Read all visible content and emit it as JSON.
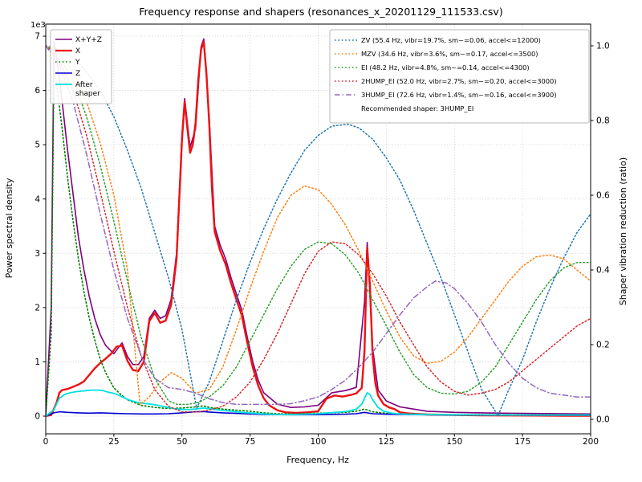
{
  "figure": {
    "title": "Frequency response and shapers (resonances_x_20201129_111533.csv)",
    "xlabel": "Frequency, Hz",
    "ylabel_left": "Power spectral density",
    "ylabel_right": "Shaper vibration reduction (ratio)",
    "offset_label": "1e3",
    "x_tick_labels": [
      "0",
      "25",
      "50",
      "75",
      "100",
      "125",
      "150",
      "175",
      "200"
    ],
    "y_tick_labels_left": [
      "0",
      "1",
      "2",
      "3",
      "4",
      "5",
      "6",
      "7"
    ],
    "y_tick_labels_right": [
      "0.0",
      "0.2",
      "0.4",
      "0.6",
      "0.8",
      "1.0"
    ],
    "grid_color": "#c3c3c3",
    "spine_color": "#000000"
  },
  "chart_data": {
    "type": "line",
    "title": "Frequency response and shapers (resonances_x_20201129_111533.csv)",
    "xlabel": "Frequency, Hz",
    "ylabel": "Power spectral density",
    "y2label": "Shaper vibration reduction (ratio)",
    "xlim": [
      0,
      200
    ],
    "ylim_left": [
      0,
      7000
    ],
    "ylim_right": [
      0,
      1.0
    ],
    "grid": true,
    "legend_left_entries": [
      "X+Y+Z",
      "X",
      "Y",
      "Z",
      "After shaper"
    ],
    "legend_right_entries": [
      "ZV (55.4 Hz, vibr=19.7%, sm~=0.06, accel<=12000)",
      "MZV (34.6 Hz, vibr=3.6%, sm~=0.17, accel<=3500)",
      "EI (48.2 Hz, vibr=4.8%, sm~=0.14, accel<=4300)",
      "2HUMP_EI (52.0 Hz, vibr=2.7%, sm~=0.20, accel<=3000)",
      "3HUMP_EI (72.6 Hz, vibr=1.4%, sm~=0.16, accel<=3900)"
    ],
    "annotation": "Recommended shaper: 3HUMP_EI",
    "series": [
      {
        "name": "X+Y+Z",
        "axis": "left",
        "color": "#7f007f",
        "style": "solid",
        "width": 1.6,
        "legend_lines": [
          "X+Y+Z"
        ],
        "x": [
          0,
          2,
          3,
          4,
          6,
          8,
          10,
          12,
          14,
          16,
          18,
          20,
          22,
          25,
          28,
          30,
          32,
          34,
          36,
          38,
          40,
          42,
          44,
          46,
          48,
          50,
          51,
          53,
          55,
          57,
          58,
          60,
          62,
          64,
          66,
          68,
          70,
          72,
          74,
          76,
          78,
          80,
          85,
          90,
          95,
          100,
          105,
          110,
          114,
          117,
          118,
          120,
          122,
          125,
          130,
          140,
          150,
          160,
          175,
          200
        ],
        "y": [
          0,
          2000,
          6900,
          6600,
          5800,
          4900,
          4100,
          3300,
          2700,
          2200,
          1800,
          1500,
          1300,
          1150,
          1350,
          1100,
          950,
          950,
          1100,
          1800,
          1950,
          1800,
          1850,
          2150,
          3000,
          5200,
          5850,
          4950,
          5300,
          6800,
          6950,
          5500,
          3500,
          3150,
          2900,
          2550,
          2250,
          1950,
          1450,
          1000,
          660,
          430,
          220,
          160,
          170,
          200,
          430,
          470,
          530,
          2100,
          3200,
          1250,
          480,
          280,
          170,
          90,
          70,
          60,
          50,
          40
        ]
      },
      {
        "name": "X",
        "axis": "left",
        "color": "#ee1111",
        "style": "solid",
        "width": 2.4,
        "legend_lines": [
          "X"
        ],
        "x": [
          0,
          2,
          4,
          5,
          6,
          8,
          10,
          12,
          14,
          16,
          18,
          20,
          22,
          24,
          26,
          28,
          30,
          32,
          34,
          36,
          38,
          40,
          42,
          44,
          46,
          48,
          50,
          51,
          52,
          53,
          54,
          55,
          56,
          57,
          58,
          59,
          60,
          61,
          62,
          64,
          66,
          68,
          70,
          72,
          74,
          76,
          78,
          80,
          82,
          85,
          88,
          92,
          96,
          100,
          103,
          106,
          109,
          112,
          114,
          116,
          117,
          118,
          119,
          120,
          121,
          122,
          124,
          126,
          128,
          130,
          133,
          136,
          140,
          145,
          150,
          160,
          170,
          180,
          190,
          200
        ],
        "y": [
          0,
          20,
          250,
          430,
          480,
          500,
          540,
          580,
          640,
          760,
          880,
          980,
          1060,
          1150,
          1280,
          1300,
          1020,
          850,
          830,
          1000,
          1750,
          1900,
          1720,
          1760,
          2050,
          2900,
          5100,
          5800,
          5300,
          4850,
          5000,
          5400,
          6200,
          6750,
          6900,
          6300,
          5400,
          4200,
          3400,
          3050,
          2800,
          2450,
          2150,
          1850,
          1350,
          900,
          560,
          330,
          200,
          110,
          70,
          60,
          70,
          90,
          320,
          380,
          360,
          390,
          420,
          520,
          1200,
          3100,
          2400,
          1100,
          600,
          380,
          220,
          160,
          130,
          70,
          50,
          40,
          30,
          25,
          20,
          15,
          12,
          10,
          8,
          6
        ]
      },
      {
        "name": "Y",
        "axis": "left",
        "color": "#008000",
        "style": "dotted",
        "width": 1.6,
        "legend_lines": [
          "Y"
        ],
        "x": [
          0,
          2,
          3,
          4,
          6,
          8,
          10,
          12,
          14,
          16,
          18,
          20,
          22,
          25,
          28,
          30,
          35,
          40,
          45,
          50,
          55,
          58,
          60,
          65,
          70,
          75,
          80,
          85,
          90,
          95,
          100,
          105,
          110,
          114,
          117,
          120,
          125,
          130,
          140,
          150,
          160,
          175,
          200
        ],
        "y": [
          0,
          1500,
          6400,
          6100,
          5300,
          4400,
          3600,
          2900,
          2300,
          1800,
          1400,
          1050,
          800,
          520,
          380,
          300,
          200,
          160,
          140,
          150,
          170,
          190,
          160,
          130,
          110,
          90,
          60,
          45,
          40,
          45,
          55,
          60,
          70,
          90,
          130,
          80,
          50,
          40,
          35,
          30,
          28,
          25,
          22
        ]
      },
      {
        "name": "Z",
        "axis": "left",
        "color": "#0000d0",
        "style": "solid",
        "width": 1.6,
        "legend_lines": [
          "Z"
        ],
        "x": [
          0,
          3,
          5,
          8,
          12,
          16,
          20,
          25,
          30,
          35,
          40,
          45,
          50,
          55,
          58,
          60,
          65,
          70,
          75,
          80,
          90,
          100,
          110,
          114,
          117,
          120,
          125,
          130,
          140,
          150,
          175,
          200
        ],
        "y": [
          0,
          60,
          80,
          70,
          60,
          55,
          60,
          50,
          45,
          40,
          40,
          45,
          60,
          80,
          85,
          75,
          60,
          50,
          40,
          30,
          25,
          28,
          35,
          45,
          70,
          45,
          35,
          30,
          25,
          20,
          18,
          15
        ]
      },
      {
        "name": "After shaper",
        "axis": "left",
        "color": "#00e0e0",
        "style": "solid",
        "width": 1.8,
        "legend_lines": [
          "After",
          "shaper"
        ],
        "x": [
          0,
          3,
          5,
          7,
          9,
          11,
          13,
          15,
          17,
          19,
          21,
          23,
          25,
          27,
          29,
          31,
          34,
          37,
          40,
          44,
          48,
          52,
          55,
          58,
          61,
          64,
          68,
          72,
          76,
          80,
          85,
          90,
          95,
          100,
          104,
          108,
          111,
          114,
          116,
          117,
          118,
          119,
          120,
          122,
          124,
          127,
          130,
          135,
          140,
          150,
          160,
          175,
          200
        ],
        "y": [
          0,
          120,
          330,
          400,
          430,
          450,
          460,
          470,
          480,
          480,
          470,
          440,
          420,
          380,
          330,
          290,
          250,
          230,
          210,
          170,
          130,
          120,
          130,
          150,
          130,
          110,
          90,
          70,
          55,
          40,
          30,
          28,
          35,
          45,
          60,
          75,
          90,
          130,
          220,
          330,
          430,
          400,
          300,
          160,
          90,
          55,
          40,
          32,
          28,
          25,
          22,
          20,
          20
        ]
      },
      {
        "name": "ZV",
        "axis": "right",
        "color": "#1f77b4",
        "style": "dotted",
        "width": 1.5,
        "legend_lines": [
          "ZV (55.4 Hz, vibr=19.7%, sm~=0.06, accel<=12000)"
        ],
        "x": [
          0,
          5,
          10,
          15,
          20,
          25,
          30,
          35,
          40,
          45,
          50,
          55.4,
          60,
          65,
          70,
          75,
          80,
          85,
          90,
          95,
          100,
          105,
          111,
          115,
          120,
          125,
          130,
          135,
          140,
          145,
          150,
          155,
          160,
          166,
          170,
          175,
          180,
          185,
          190,
          195,
          200
        ],
        "y": [
          1.0,
          0.99,
          0.97,
          0.93,
          0.88,
          0.81,
          0.72,
          0.62,
          0.5,
          0.38,
          0.24,
          0.03,
          0.1,
          0.21,
          0.32,
          0.42,
          0.51,
          0.59,
          0.66,
          0.72,
          0.76,
          0.785,
          0.79,
          0.78,
          0.75,
          0.7,
          0.64,
          0.56,
          0.47,
          0.38,
          0.28,
          0.18,
          0.08,
          0.01,
          0.08,
          0.16,
          0.26,
          0.35,
          0.43,
          0.5,
          0.55
        ]
      },
      {
        "name": "MZV",
        "axis": "right",
        "color": "#ff7f0e",
        "style": "dotted",
        "width": 1.5,
        "legend_lines": [
          "MZV (34.6 Hz, vibr=3.6%, sm~=0.17, accel<=3500)"
        ],
        "x": [
          0,
          5,
          10,
          15,
          20,
          25,
          30,
          34.6,
          38,
          42,
          46,
          50,
          55,
          60,
          65,
          70,
          75,
          80,
          85,
          90,
          95,
          100,
          105,
          110,
          115,
          120,
          125,
          130,
          135,
          140,
          145,
          150,
          155,
          160,
          165,
          170,
          175,
          180,
          185,
          190,
          195,
          200
        ],
        "y": [
          1.0,
          0.98,
          0.93,
          0.85,
          0.74,
          0.6,
          0.4,
          0.04,
          0.06,
          0.1,
          0.125,
          0.11,
          0.07,
          0.08,
          0.14,
          0.24,
          0.35,
          0.45,
          0.54,
          0.6,
          0.625,
          0.615,
          0.575,
          0.52,
          0.45,
          0.37,
          0.29,
          0.22,
          0.17,
          0.15,
          0.155,
          0.18,
          0.22,
          0.27,
          0.32,
          0.37,
          0.41,
          0.435,
          0.44,
          0.43,
          0.4,
          0.37
        ]
      },
      {
        "name": "EI",
        "axis": "right",
        "color": "#2ca02c",
        "style": "dotted",
        "width": 1.5,
        "legend_lines": [
          "EI (48.2 Hz, vibr=4.8%, sm~=0.14, accel<=4300)"
        ],
        "x": [
          0,
          5,
          10,
          15,
          20,
          25,
          30,
          35,
          40,
          45,
          48.2,
          52,
          56,
          60,
          65,
          70,
          75,
          80,
          85,
          90,
          95,
          100,
          105,
          110,
          115,
          120,
          125,
          130,
          135,
          140,
          145,
          150,
          155,
          160,
          165,
          170,
          175,
          180,
          185,
          190,
          195,
          200
        ],
        "y": [
          1.0,
          0.97,
          0.91,
          0.81,
          0.68,
          0.53,
          0.37,
          0.22,
          0.11,
          0.05,
          0.04,
          0.04,
          0.045,
          0.06,
          0.09,
          0.14,
          0.21,
          0.28,
          0.35,
          0.41,
          0.455,
          0.475,
          0.47,
          0.44,
          0.39,
          0.32,
          0.25,
          0.18,
          0.12,
          0.085,
          0.07,
          0.068,
          0.075,
          0.1,
          0.14,
          0.2,
          0.26,
          0.32,
          0.37,
          0.405,
          0.42,
          0.42
        ]
      },
      {
        "name": "2HUMP_EI",
        "axis": "right",
        "color": "#d62728",
        "style": "dotted",
        "width": 1.5,
        "legend_lines": [
          "2HUMP_EI (52.0 Hz, vibr=2.7%, sm~=0.20, accel<=3000)"
        ],
        "x": [
          0,
          5,
          10,
          15,
          20,
          25,
          30,
          35,
          40,
          45,
          50,
          52,
          56,
          60,
          65,
          70,
          75,
          80,
          85,
          90,
          95,
          100,
          105,
          110,
          115,
          120,
          125,
          130,
          135,
          140,
          145,
          150,
          155,
          160,
          165,
          170,
          175,
          180,
          185,
          190,
          195,
          200
        ],
        "y": [
          1.0,
          0.96,
          0.88,
          0.76,
          0.61,
          0.45,
          0.3,
          0.17,
          0.08,
          0.035,
          0.02,
          0.02,
          0.02,
          0.025,
          0.035,
          0.06,
          0.1,
          0.16,
          0.23,
          0.31,
          0.39,
          0.45,
          0.475,
          0.47,
          0.44,
          0.39,
          0.33,
          0.26,
          0.2,
          0.14,
          0.1,
          0.075,
          0.065,
          0.07,
          0.08,
          0.1,
          0.13,
          0.16,
          0.19,
          0.22,
          0.25,
          0.27
        ]
      },
      {
        "name": "3HUMP_EI",
        "axis": "right",
        "color": "#9467bd",
        "style": "dashdot",
        "width": 1.5,
        "legend_lines": [
          "3HUMP_EI (72.6 Hz, vibr=1.4%, sm~=0.16, accel<=3900)"
        ],
        "x": [
          0,
          5,
          10,
          15,
          20,
          25,
          30,
          35,
          40,
          45,
          50,
          55,
          60,
          65,
          70,
          72.6,
          75,
          80,
          85,
          90,
          95,
          100,
          105,
          110,
          115,
          120,
          125,
          130,
          135,
          140,
          143,
          147,
          150,
          155,
          160,
          165,
          170,
          175,
          180,
          185,
          190,
          195,
          200
        ],
        "y": [
          1.0,
          0.95,
          0.85,
          0.71,
          0.55,
          0.4,
          0.27,
          0.17,
          0.11,
          0.085,
          0.08,
          0.07,
          0.055,
          0.045,
          0.04,
          0.04,
          0.04,
          0.04,
          0.04,
          0.042,
          0.05,
          0.06,
          0.08,
          0.105,
          0.14,
          0.18,
          0.23,
          0.28,
          0.325,
          0.355,
          0.37,
          0.365,
          0.35,
          0.31,
          0.26,
          0.2,
          0.15,
          0.11,
          0.085,
          0.07,
          0.065,
          0.06,
          0.06
        ]
      }
    ]
  }
}
